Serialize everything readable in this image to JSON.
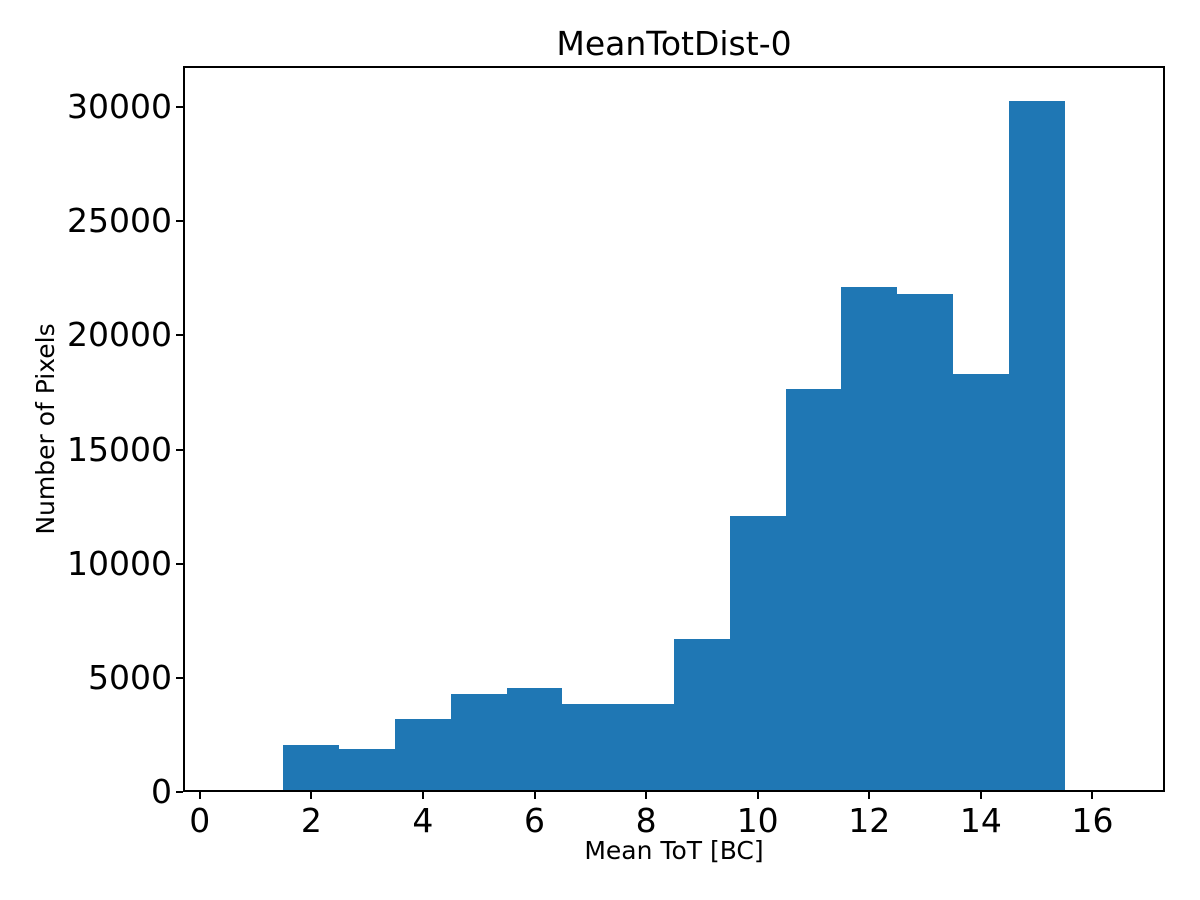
{
  "figure": {
    "background_color": "#ffffff",
    "spine_color": "#000000",
    "text_color": "#000000"
  },
  "chart_data": {
    "type": "bar",
    "subtype": "histogram",
    "title": "MeanTotDist-0",
    "xlabel": "Mean ToT [BC]",
    "ylabel": "Number of Pixels",
    "bar_color": "#1f77b4",
    "grid": false,
    "legend": false,
    "bin_edges": [
      1.5,
      2.5,
      3.5,
      4.5,
      5.5,
      6.5,
      7.5,
      8.5,
      9.5,
      10.5,
      11.5,
      12.5,
      13.5,
      14.5,
      15.5
    ],
    "bin_centers": [
      2,
      3,
      4,
      5,
      6,
      7,
      8,
      9,
      10,
      11,
      12,
      13,
      14,
      15
    ],
    "values": [
      2050,
      1870,
      3210,
      4310,
      4570,
      3840,
      3840,
      6690,
      12100,
      17640,
      22100,
      21810,
      18310,
      30250
    ],
    "xlim": [
      -0.3,
      17.3
    ],
    "ylim": [
      0,
      31800
    ],
    "xticks": [
      0,
      2,
      4,
      6,
      8,
      10,
      12,
      14,
      16
    ],
    "yticks": [
      0,
      5000,
      10000,
      15000,
      20000,
      25000,
      30000
    ],
    "xtick_labels": [
      "0",
      "2",
      "4",
      "6",
      "8",
      "10",
      "12",
      "14",
      "16"
    ],
    "ytick_labels": [
      "0",
      "5000",
      "10000",
      "15000",
      "20000",
      "25000",
      "30000"
    ]
  }
}
